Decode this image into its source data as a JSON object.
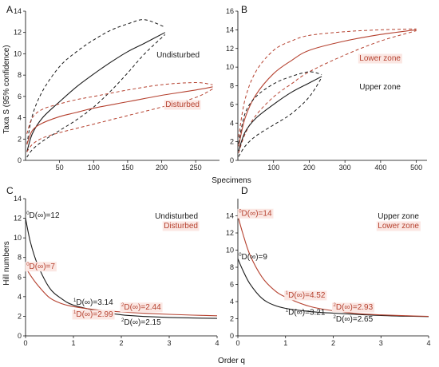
{
  "colors": {
    "undisturbed": "#1a1a1a",
    "disturbed": "#b5412f",
    "label_bg": "#fbe7e3"
  },
  "figure": {
    "ylabel_top": "Taxa S (95% confidence)",
    "xlabel_top": "Specimens",
    "ylabel_bottom": "Hill numbers",
    "xlabel_bottom": "Order q"
  },
  "chart_data": [
    {
      "panel": "A",
      "type": "line",
      "xlim": [
        0,
        285
      ],
      "ylim": [
        0,
        14
      ],
      "xticks": [
        50,
        100,
        150,
        200,
        250
      ],
      "yticks": [
        0,
        2,
        4,
        6,
        8,
        10,
        12,
        14
      ],
      "series": [
        {
          "name": "Undisturbed",
          "color": "dark",
          "label_bg": false,
          "x": [
            2,
            10,
            25,
            50,
            75,
            100,
            125,
            150,
            175,
            205
          ],
          "y": [
            0.8,
            2.5,
            4.0,
            5.5,
            6.9,
            8.1,
            9.2,
            10.2,
            11.0,
            12.0
          ],
          "upper": [
            1.5,
            4.2,
            6.5,
            8.8,
            10.2,
            11.3,
            12.2,
            12.8,
            13.2,
            12.5
          ],
          "lower": [
            0.3,
            1.0,
            1.8,
            2.8,
            3.8,
            5.0,
            6.5,
            8.2,
            10.0,
            11.8
          ]
        },
        {
          "name": "Disturbed",
          "color": "red",
          "label_bg": true,
          "x": [
            2,
            10,
            25,
            50,
            75,
            100,
            150,
            200,
            250,
            275
          ],
          "y": [
            1.5,
            2.8,
            3.5,
            4.1,
            4.5,
            4.9,
            5.5,
            6.1,
            6.6,
            6.9
          ],
          "upper": [
            2.5,
            4.0,
            4.8,
            5.3,
            5.7,
            6.0,
            6.6,
            7.1,
            7.3,
            7.1
          ],
          "lower": [
            0.8,
            1.5,
            2.1,
            2.6,
            3.0,
            3.4,
            4.2,
            5.0,
            5.9,
            6.7
          ]
        }
      ]
    },
    {
      "panel": "B",
      "type": "line",
      "xlim": [
        0,
        530
      ],
      "ylim": [
        0,
        16
      ],
      "xticks": [
        100,
        200,
        300,
        400,
        500
      ],
      "yticks": [
        0,
        2,
        4,
        6,
        8,
        10,
        12,
        14,
        16
      ],
      "series": [
        {
          "name": "Lower zone",
          "color": "red",
          "label_bg": true,
          "x": [
            2,
            20,
            50,
            100,
            150,
            200,
            300,
            400,
            500
          ],
          "y": [
            1.5,
            4.5,
            7.0,
            9.3,
            10.7,
            11.8,
            12.8,
            13.5,
            14.0
          ],
          "upper": [
            2.5,
            6.5,
            9.5,
            11.8,
            12.8,
            13.4,
            13.8,
            14.0,
            14.1
          ],
          "lower": [
            0.8,
            2.8,
            4.8,
            6.8,
            8.2,
            9.5,
            11.3,
            12.8,
            13.9
          ]
        },
        {
          "name": "Upper zone",
          "color": "dark",
          "label_bg": false,
          "x": [
            2,
            20,
            50,
            100,
            150,
            200,
            235
          ],
          "y": [
            1.0,
            3.0,
            4.5,
            6.0,
            7.3,
            8.3,
            9.0
          ],
          "upper": [
            1.8,
            5.0,
            6.8,
            8.2,
            9.0,
            9.5,
            9.2
          ],
          "lower": [
            0.4,
            1.5,
            2.6,
            3.8,
            5.0,
            6.8,
            8.9
          ]
        }
      ]
    },
    {
      "panel": "C",
      "type": "line",
      "xlim": [
        0,
        4
      ],
      "ylim": [
        0,
        14
      ],
      "xticks": [
        0,
        1,
        2,
        3,
        4
      ],
      "yticks": [
        0,
        2,
        4,
        6,
        8,
        10,
        12,
        14
      ],
      "series": [
        {
          "name": "Undisturbed",
          "color": "dark",
          "label_bg": false,
          "x": [
            0,
            0.1,
            0.25,
            0.5,
            0.75,
            1,
            1.5,
            2,
            2.5,
            3,
            3.5,
            4
          ],
          "y": [
            12,
            9.6,
            7.3,
            4.9,
            3.8,
            3.14,
            2.55,
            2.15,
            1.98,
            1.88,
            1.82,
            1.78
          ]
        },
        {
          "name": "Disturbed",
          "color": "red",
          "label_bg": true,
          "x": [
            0,
            0.1,
            0.25,
            0.5,
            0.75,
            1,
            1.5,
            2,
            2.5,
            3,
            3.5,
            4
          ],
          "y": [
            7,
            6.2,
            5.2,
            3.9,
            3.3,
            2.99,
            2.65,
            2.44,
            2.3,
            2.2,
            2.12,
            2.05
          ]
        }
      ],
      "annotations": [
        {
          "sup": "0",
          "text": "D(∞)=12",
          "color": "dark",
          "x": 0.02,
          "y": 12.3,
          "bg": false
        },
        {
          "sup": "0",
          "text": "D(∞)=7",
          "color": "red",
          "x": 0.02,
          "y": 7.1,
          "bg": true
        },
        {
          "sup": "1",
          "text": "D(∞)=3.14",
          "color": "dark",
          "x": 1.0,
          "y": 3.4,
          "bg": false
        },
        {
          "sup": "1",
          "text": "D(∞)=2.99",
          "color": "red",
          "x": 1.0,
          "y": 2.2,
          "bg": true
        },
        {
          "sup": "2",
          "text": "D(∞)=2.44",
          "color": "red",
          "x": 2.0,
          "y": 2.95,
          "bg": true
        },
        {
          "sup": "2",
          "text": "D(∞)=2.15",
          "color": "dark",
          "x": 2.0,
          "y": 1.4,
          "bg": false
        }
      ]
    },
    {
      "panel": "D",
      "type": "line",
      "xlim": [
        0,
        4
      ],
      "ylim": [
        0,
        16
      ],
      "xticks": [
        0,
        1,
        2,
        3,
        4
      ],
      "yticks": [
        0,
        2,
        4,
        6,
        8,
        10,
        12,
        14
      ],
      "series": [
        {
          "name": "Upper zone",
          "color": "dark",
          "label_bg": false,
          "x": [
            0,
            0.1,
            0.25,
            0.5,
            0.75,
            1,
            1.5,
            2,
            2.5,
            3,
            3.5,
            4
          ],
          "y": [
            9,
            7.7,
            6.1,
            4.4,
            3.6,
            3.21,
            2.85,
            2.65,
            2.5,
            2.38,
            2.3,
            2.25
          ]
        },
        {
          "name": "Lower zone",
          "color": "red",
          "label_bg": true,
          "x": [
            0,
            0.1,
            0.25,
            0.5,
            0.75,
            1,
            1.5,
            2,
            2.5,
            3,
            3.5,
            4
          ],
          "y": [
            14,
            12.0,
            9.5,
            6.9,
            5.4,
            4.52,
            3.45,
            2.93,
            2.6,
            2.45,
            2.35,
            2.28
          ]
        }
      ],
      "annotations": [
        {
          "sup": "0",
          "text": "D(∞)=14",
          "color": "red",
          "x": 0.02,
          "y": 14.3,
          "bg": true
        },
        {
          "sup": "0",
          "text": "D(∞)=9",
          "color": "dark",
          "x": 0.02,
          "y": 9.2,
          "bg": false
        },
        {
          "sup": "1",
          "text": "D(∞)=4.52",
          "color": "red",
          "x": 1.0,
          "y": 4.75,
          "bg": true
        },
        {
          "sup": "2",
          "text": "D(∞)=2.93",
          "color": "red",
          "x": 2.0,
          "y": 3.35,
          "bg": true
        },
        {
          "sup": "1",
          "text": "D(∞)=3.21",
          "color": "dark",
          "x": 1.0,
          "y": 2.75,
          "bg": false
        },
        {
          "sup": "2",
          "text": "D(∞)=2.65",
          "color": "dark",
          "x": 2.0,
          "y": 1.95,
          "bg": false
        }
      ]
    }
  ]
}
